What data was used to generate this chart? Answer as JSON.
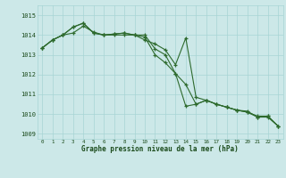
{
  "x": [
    0,
    1,
    2,
    3,
    4,
    5,
    6,
    7,
    8,
    9,
    10,
    11,
    12,
    13,
    14,
    15,
    16,
    17,
    18,
    19,
    20,
    21,
    22,
    23
  ],
  "series1": [
    1013.35,
    1013.75,
    1014.0,
    1014.1,
    1014.45,
    1014.15,
    1014.0,
    1014.0,
    1014.0,
    1014.0,
    1013.75,
    1013.55,
    1013.25,
    1012.5,
    1013.85,
    1010.85,
    1010.7,
    1010.5,
    1010.35,
    1010.2,
    1010.15,
    1009.85,
    1009.85,
    1009.4
  ],
  "series2": [
    1013.35,
    1013.75,
    1014.0,
    1014.4,
    1014.6,
    1014.1,
    1014.0,
    1014.05,
    1014.1,
    1014.0,
    1014.0,
    1013.3,
    1013.0,
    1012.05,
    1011.5,
    1010.5,
    1010.7,
    1010.5,
    1010.35,
    1010.2,
    1010.1,
    1009.9,
    1009.9,
    1009.4
  ],
  "series3": [
    1013.35,
    1013.75,
    1014.0,
    1014.4,
    1014.6,
    1014.1,
    1014.0,
    1014.05,
    1014.1,
    1014.0,
    1013.9,
    1013.0,
    1012.6,
    1012.05,
    1010.4,
    1010.5,
    1010.7,
    1010.5,
    1010.35,
    1010.2,
    1010.1,
    1009.85,
    1009.9,
    1009.4
  ],
  "line_color": "#2d6a2d",
  "bg_color": "#cce8e8",
  "grid_color": "#a8d4d4",
  "label_color": "#1a4a1a",
  "title": "Graphe pression niveau de la mer (hPa)",
  "ylim": [
    1008.75,
    1015.5
  ],
  "yticks": [
    1009,
    1010,
    1011,
    1012,
    1013,
    1014,
    1015
  ],
  "xticks": [
    0,
    1,
    2,
    3,
    4,
    5,
    6,
    7,
    8,
    9,
    10,
    11,
    12,
    13,
    14,
    15,
    16,
    17,
    18,
    19,
    20,
    21,
    22,
    23
  ]
}
